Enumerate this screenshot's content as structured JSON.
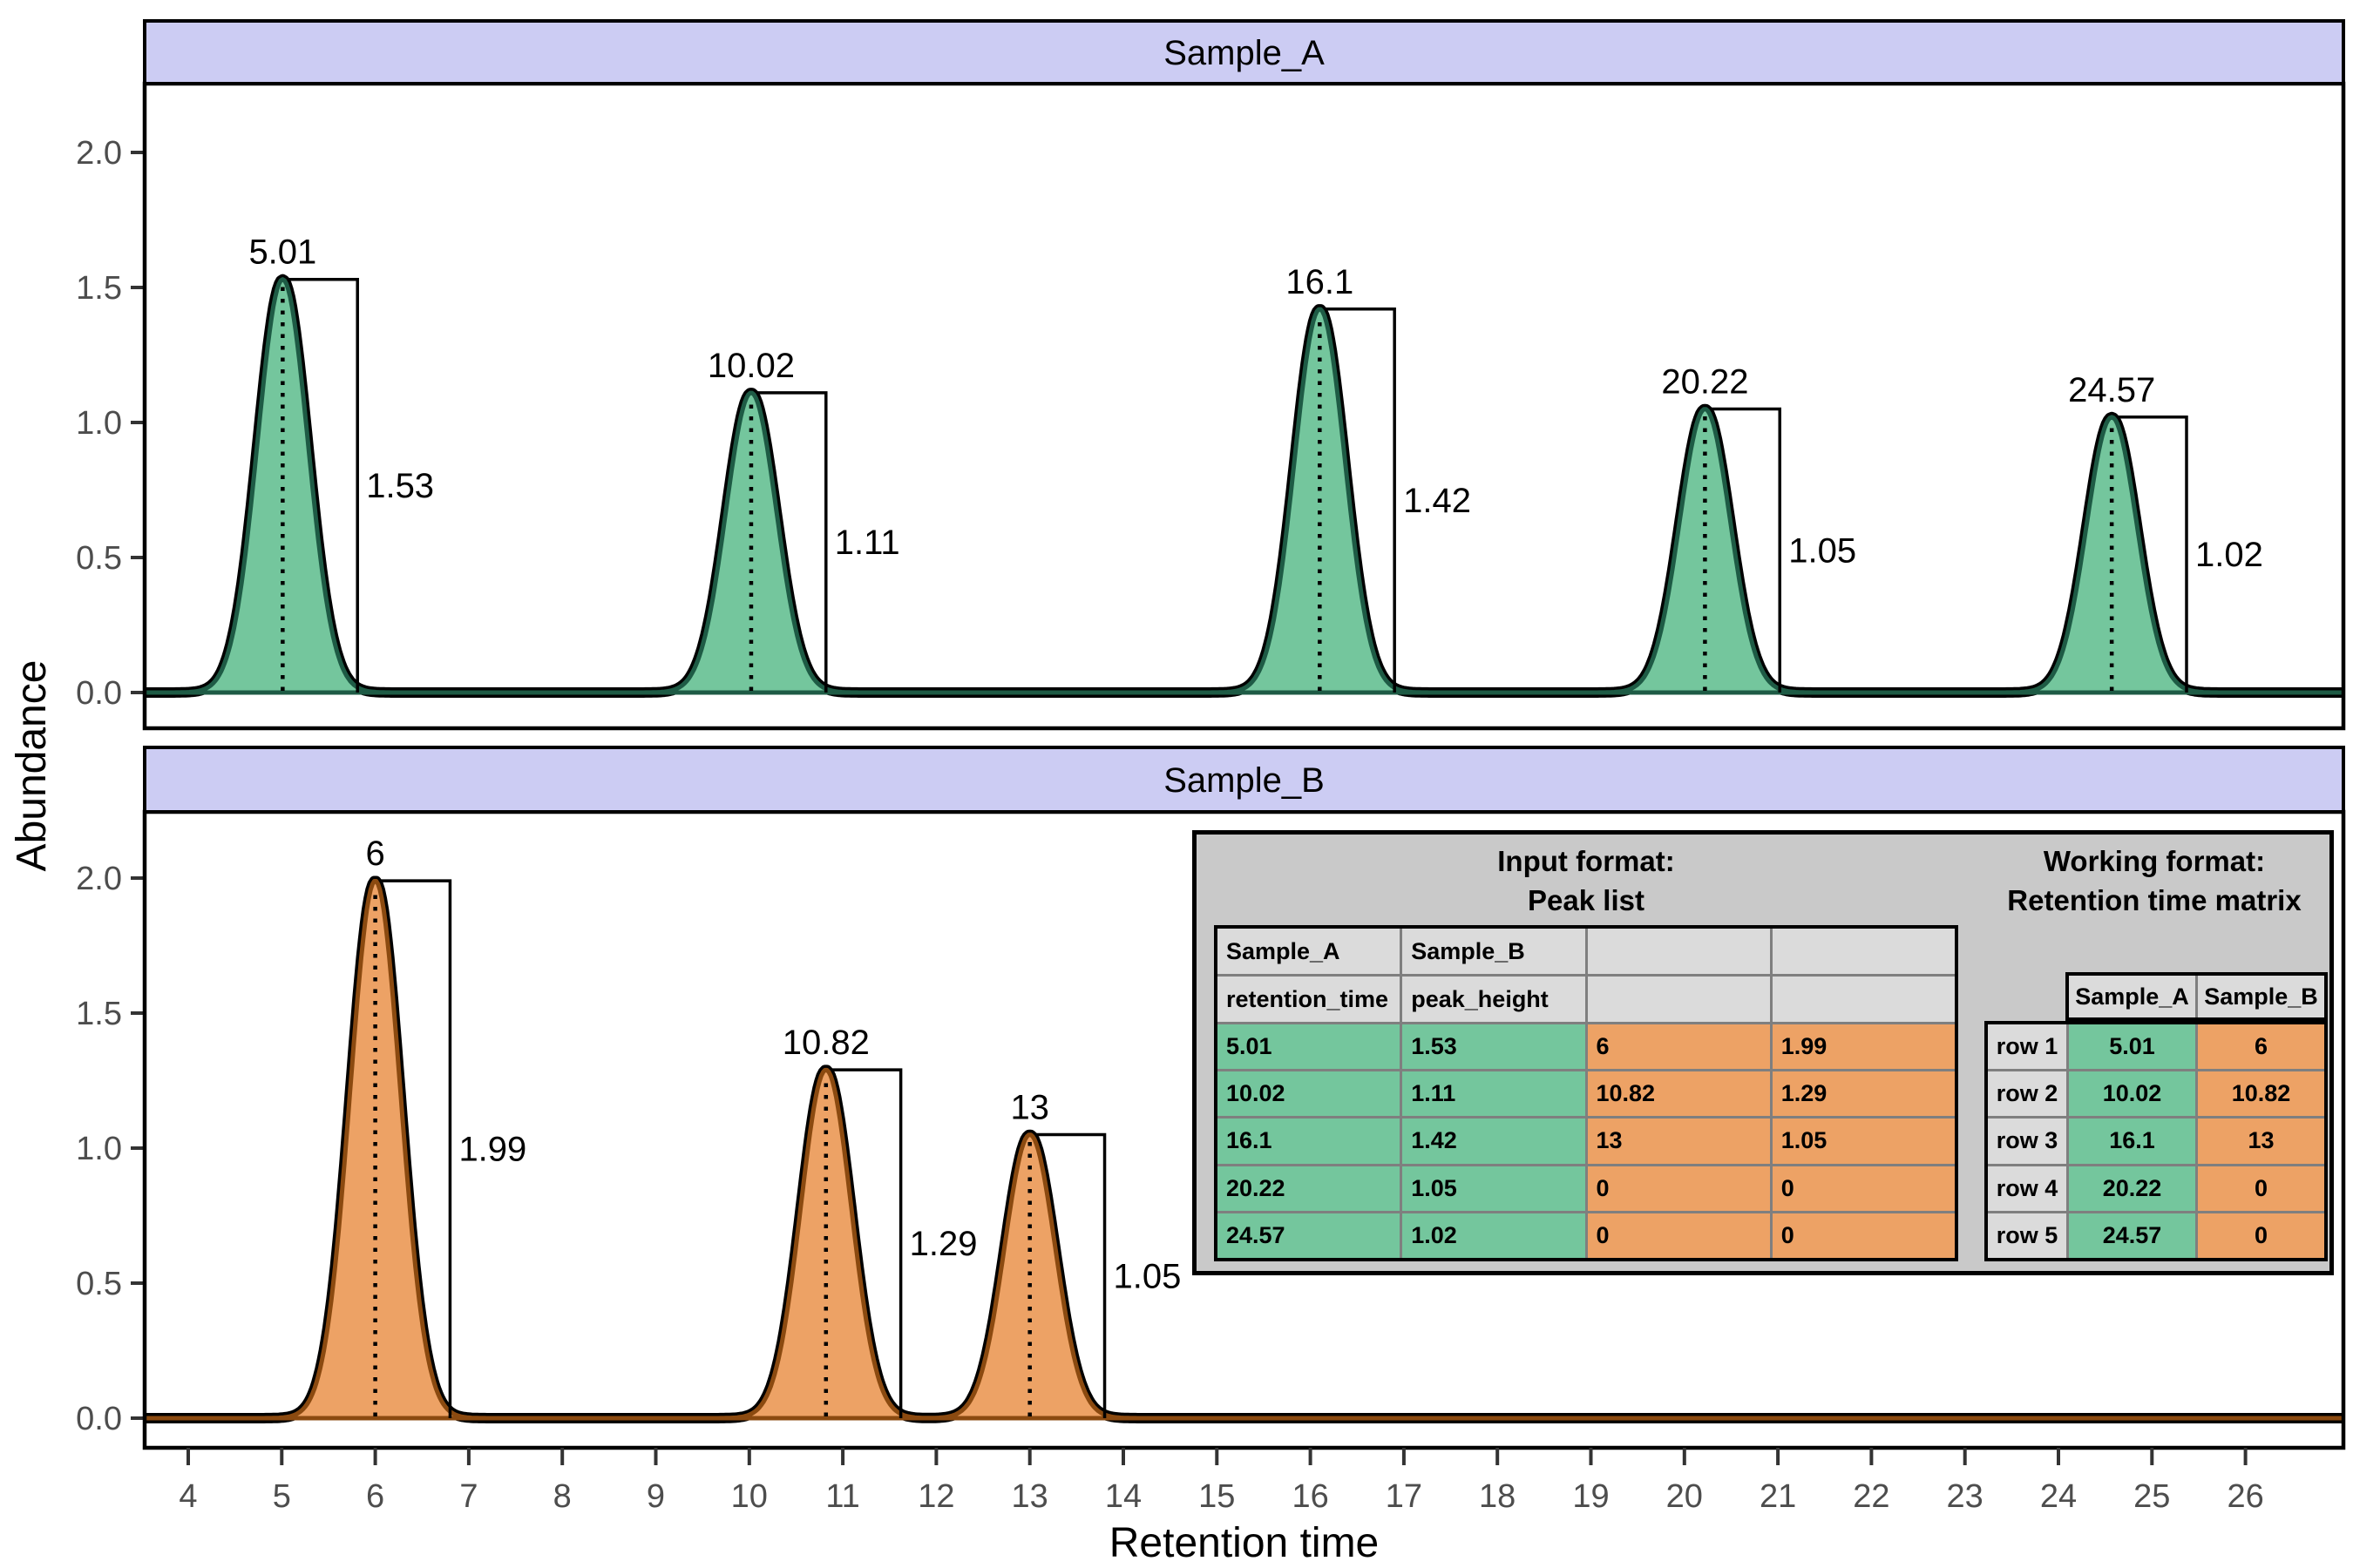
{
  "chart_data": {
    "type": "area",
    "title": "",
    "xlabel": "Retention time",
    "ylabel": "Abundance",
    "x_ticks": [
      4,
      5,
      6,
      7,
      8,
      9,
      10,
      11,
      12,
      13,
      14,
      15,
      16,
      17,
      18,
      19,
      20,
      21,
      22,
      23,
      24,
      25,
      26
    ],
    "y_ticks": [
      {
        "value": 0,
        "label": "0.0"
      },
      {
        "value": 0.5,
        "label": "0.5"
      },
      {
        "value": 1,
        "label": "1.0"
      },
      {
        "value": 1.5,
        "label": "1.5"
      },
      {
        "value": 2,
        "label": "2.0"
      }
    ],
    "xlim": [
      3.53,
      27.05
    ],
    "ylim": [
      -0.13,
      2.26
    ],
    "gauss_sigma": 0.27,
    "bracket_dx": 0.8,
    "grid": "off",
    "strip_fill": "#CCCCF3",
    "tick_label_color": "#4D4D4D",
    "axis_color": "#000000",
    "facets": [
      {
        "label": "Sample_A",
        "fill": "#74C69D",
        "edge": "#1E5B45",
        "peaks": [
          {
            "rt": 5.01,
            "height": 1.53,
            "rt_label": "5.01",
            "height_label": "1.53"
          },
          {
            "rt": 10.02,
            "height": 1.11,
            "rt_label": "10.02",
            "height_label": "1.11"
          },
          {
            "rt": 16.1,
            "height": 1.42,
            "rt_label": "16.1",
            "height_label": "1.42"
          },
          {
            "rt": 20.22,
            "height": 1.05,
            "rt_label": "20.22",
            "height_label": "1.05"
          },
          {
            "rt": 24.57,
            "height": 1.02,
            "rt_label": "24.57",
            "height_label": "1.02"
          }
        ]
      },
      {
        "label": "Sample_B",
        "fill": "#EDA265",
        "edge": "#8B4A10",
        "peaks": [
          {
            "rt": 6,
            "height": 1.99,
            "rt_label": "6",
            "height_label": "1.99"
          },
          {
            "rt": 10.82,
            "height": 1.29,
            "rt_label": "10.82",
            "height_label": "1.29"
          },
          {
            "rt": 13,
            "height": 1.05,
            "rt_label": "13",
            "height_label": "1.05"
          }
        ]
      }
    ]
  },
  "inset": {
    "background": "#C9C9C9",
    "header_fill": "#DBDBDB",
    "green": "#74C69D",
    "orange": "#EDA265",
    "peak_list": {
      "title_line1": "Input format:",
      "title_line2": "Peak list",
      "header_rows": [
        [
          "Sample_A",
          "Sample_B",
          "",
          ""
        ],
        [
          "retention_time",
          "peak_height",
          "",
          ""
        ]
      ],
      "rows": [
        [
          "5.01",
          "1.53",
          "6",
          "1.99"
        ],
        [
          "10.02",
          "1.11",
          "10.82",
          "1.29"
        ],
        [
          "16.1",
          "1.42",
          "13",
          "1.05"
        ],
        [
          "20.22",
          "1.05",
          "0",
          "0"
        ],
        [
          "24.57",
          "1.02",
          "0",
          "0"
        ]
      ],
      "column_fill": [
        "green",
        "green",
        "orange",
        "orange"
      ]
    },
    "matrix": {
      "title_line1": "Working format:",
      "title_line2": "Retention time matrix",
      "col_headers": [
        "Sample_A",
        "Sample_B"
      ],
      "row_labels": [
        "row 1",
        "row 2",
        "row 3",
        "row 4",
        "row 5"
      ],
      "rows": [
        [
          "5.01",
          "6"
        ],
        [
          "10.02",
          "10.82"
        ],
        [
          "16.1",
          "13"
        ],
        [
          "20.22",
          "0"
        ],
        [
          "24.57",
          "0"
        ]
      ],
      "column_fill": [
        "green",
        "orange"
      ]
    }
  }
}
